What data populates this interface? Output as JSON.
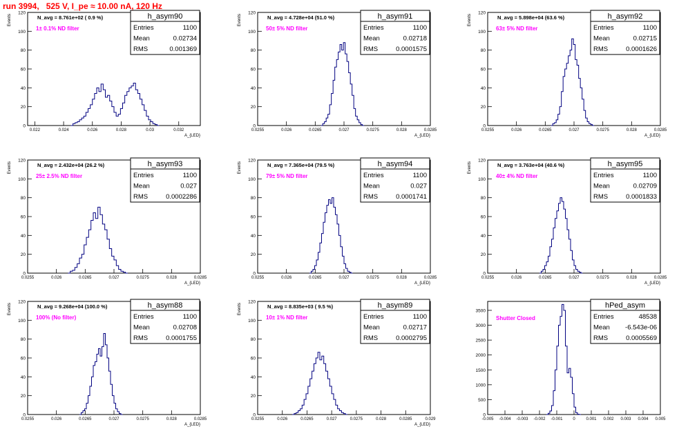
{
  "header": {
    "title": "run 3994,   525 V, I_pe ≈ 10.00 nA, 120 Hz"
  },
  "chart_data": [
    {
      "type": "bar",
      "name": "h_asym90",
      "navg": "N_avg = 8.761e+02 ( 0.9 %)",
      "filter": "1± 0.1% ND filter",
      "stats": {
        "entries": "1100",
        "mean": "0.02734",
        "rms": "0.001369"
      },
      "ylabel": "Events",
      "xlabel": "A_{LED}",
      "xlim": [
        0.0215,
        0.0335
      ],
      "ylim": [
        0,
        120
      ],
      "yticks": [
        0,
        20,
        40,
        60,
        80,
        100,
        120
      ],
      "xticks": [
        0.022,
        0.024,
        0.026,
        0.028,
        0.03,
        0.032
      ],
      "xticklabels": [
        "0.022",
        "0.024",
        "0.026",
        "0.028",
        "0.03",
        "0.032"
      ],
      "hist": {
        "start": 0.0245,
        "width": 0.00015,
        "values": [
          0,
          2,
          3,
          4,
          6,
          8,
          10,
          14,
          18,
          22,
          28,
          34,
          40,
          36,
          44,
          38,
          30,
          32,
          26,
          20,
          14,
          10,
          12,
          18,
          24,
          32,
          36,
          40,
          42,
          45,
          38,
          34,
          28,
          22,
          16,
          10,
          6,
          4,
          2,
          1,
          0
        ]
      }
    },
    {
      "type": "bar",
      "name": "h_asym91",
      "navg": "N_avg = 4.728e+04 (51.0 %)",
      "filter": "50± 5% ND filter",
      "stats": {
        "entries": "1100",
        "mean": "0.02718",
        "rms": "0.0001575"
      },
      "ylabel": "Events",
      "xlabel": "A_{LED}",
      "xlim": [
        0.0255,
        0.0285
      ],
      "ylim": [
        0,
        120
      ],
      "yticks": [
        0,
        20,
        40,
        60,
        80,
        100,
        120
      ],
      "xticks": [
        0.0255,
        0.026,
        0.0265,
        0.027,
        0.0275,
        0.028,
        0.0285
      ],
      "xticklabels": [
        "0.0255",
        "0.026",
        "0.0265",
        "0.027",
        "0.0275",
        "0.028",
        "0.0285"
      ],
      "hist": {
        "start": 0.0266,
        "width": 3e-05,
        "values": [
          0,
          2,
          4,
          8,
          12,
          22,
          34,
          48,
          62,
          70,
          78,
          86,
          80,
          88,
          76,
          68,
          56,
          44,
          32,
          18,
          10,
          6,
          3,
          1,
          0
        ]
      }
    },
    {
      "type": "bar",
      "name": "h_asym92",
      "navg": "N_avg = 5.898e+04 (63.6 %)",
      "filter": "63± 5% ND filter",
      "stats": {
        "entries": "1100",
        "mean": "0.02715",
        "rms": "0.0001626"
      },
      "ylabel": "Events",
      "xlabel": "A_{LED}",
      "xlim": [
        0.0255,
        0.0285
      ],
      "ylim": [
        0,
        120
      ],
      "yticks": [
        0,
        20,
        40,
        60,
        80,
        100,
        120
      ],
      "xticks": [
        0.0255,
        0.026,
        0.0265,
        0.027,
        0.0275,
        0.028,
        0.0285
      ],
      "xticklabels": [
        "0.0255",
        "0.026",
        "0.0265",
        "0.027",
        "0.0275",
        "0.028",
        "0.0285"
      ],
      "hist": {
        "start": 0.0266,
        "width": 3e-05,
        "values": [
          0,
          2,
          3,
          6,
          12,
          20,
          36,
          52,
          60,
          66,
          74,
          80,
          92,
          86,
          70,
          64,
          50,
          40,
          28,
          16,
          8,
          4,
          2,
          1,
          0
        ]
      }
    },
    {
      "type": "bar",
      "name": "h_asym93",
      "navg": "N_avg = 2.432e+04 (26.2 %)",
      "filter": "25± 2.5% ND filter",
      "stats": {
        "entries": "1100",
        "mean": "0.027",
        "rms": "0.0002286"
      },
      "ylabel": "Events",
      "xlabel": "A_{LED}",
      "xlim": [
        0.0255,
        0.0285
      ],
      "ylim": [
        0,
        120
      ],
      "yticks": [
        0,
        20,
        40,
        60,
        80,
        100,
        120
      ],
      "xticks": [
        0.0255,
        0.026,
        0.0265,
        0.027,
        0.0275,
        0.028,
        0.0285
      ],
      "xticklabels": [
        "0.0255",
        "0.026",
        "0.0265",
        "0.027",
        "0.0275",
        "0.028",
        "0.0285"
      ],
      "hist": {
        "start": 0.0262,
        "width": 4e-05,
        "values": [
          0,
          2,
          3,
          6,
          10,
          16,
          20,
          30,
          38,
          46,
          56,
          64,
          58,
          70,
          62,
          52,
          46,
          36,
          26,
          18,
          14,
          8,
          4,
          2,
          1,
          0
        ]
      }
    },
    {
      "type": "bar",
      "name": "h_asym94",
      "navg": "N_avg = 7.365e+04 (79.5 %)",
      "filter": "79± 5% ND filter",
      "stats": {
        "entries": "1100",
        "mean": "0.027",
        "rms": "0.0001741"
      },
      "ylabel": "Events",
      "xlabel": "A_{LED}",
      "xlim": [
        0.0255,
        0.0285
      ],
      "ylim": [
        0,
        120
      ],
      "yticks": [
        0,
        20,
        40,
        60,
        80,
        100,
        120
      ],
      "xticks": [
        0.0255,
        0.026,
        0.0265,
        0.027,
        0.0275,
        0.028,
        0.0285
      ],
      "xticklabels": [
        "0.0255",
        "0.026",
        "0.0265",
        "0.027",
        "0.0275",
        "0.028",
        "0.0285"
      ],
      "hist": {
        "start": 0.0264,
        "width": 3e-05,
        "values": [
          0,
          2,
          4,
          8,
          14,
          22,
          32,
          42,
          54,
          64,
          72,
          78,
          74,
          80,
          70,
          62,
          52,
          40,
          28,
          18,
          10,
          5,
          2,
          1,
          0
        ]
      }
    },
    {
      "type": "bar",
      "name": "h_asym95",
      "navg": "N_avg = 3.763e+04 (40.6 %)",
      "filter": "40± 4% ND filter",
      "stats": {
        "entries": "1100",
        "mean": "0.02709",
        "rms": "0.0001833"
      },
      "ylabel": "Events",
      "xlabel": "A_{LED}",
      "xlim": [
        0.0255,
        0.0285
      ],
      "ylim": [
        0,
        120
      ],
      "yticks": [
        0,
        20,
        40,
        60,
        80,
        100,
        120
      ],
      "xticks": [
        0.0255,
        0.026,
        0.0265,
        0.027,
        0.0275,
        0.028,
        0.0285
      ],
      "xticklabels": [
        "0.0255",
        "0.026",
        "0.0265",
        "0.027",
        "0.0275",
        "0.028",
        "0.0285"
      ],
      "hist": {
        "start": 0.0264,
        "width": 3e-05,
        "values": [
          0,
          2,
          4,
          8,
          12,
          18,
          28,
          36,
          48,
          58,
          66,
          74,
          80,
          76,
          68,
          58,
          46,
          36,
          24,
          14,
          8,
          4,
          2,
          1,
          0
        ]
      }
    },
    {
      "type": "bar",
      "name": "h_asym88",
      "navg": "N_avg = 9.268e+04 (100.0 %)",
      "filter": "100% (No filter)",
      "stats": {
        "entries": "1100",
        "mean": "0.02708",
        "rms": "0.0001755"
      },
      "ylabel": "Events",
      "xlabel": "A_{LED}",
      "xlim": [
        0.0255,
        0.0285
      ],
      "ylim": [
        0,
        120
      ],
      "yticks": [
        0,
        20,
        40,
        60,
        80,
        100,
        120
      ],
      "xticks": [
        0.0255,
        0.026,
        0.0265,
        0.027,
        0.0275,
        0.028,
        0.0285
      ],
      "xticklabels": [
        "0.0255",
        "0.026",
        "0.0265",
        "0.027",
        "0.0275",
        "0.028",
        "0.0285"
      ],
      "hist": {
        "start": 0.0264,
        "width": 3e-05,
        "values": [
          0,
          2,
          4,
          6,
          12,
          20,
          30,
          40,
          52,
          56,
          64,
          70,
          62,
          72,
          86,
          74,
          60,
          46,
          32,
          20,
          12,
          6,
          3,
          1,
          0
        ]
      }
    },
    {
      "type": "bar",
      "name": "h_asym89",
      "navg": "N_avg = 8.835e+03 ( 9.5 %)",
      "filter": "10± 1% ND filter",
      "stats": {
        "entries": "1100",
        "mean": "0.02717",
        "rms": "0.0002795"
      },
      "ylabel": "Events",
      "xlabel": "A_{LED}",
      "xlim": [
        0.0255,
        0.029
      ],
      "ylim": [
        0,
        120
      ],
      "yticks": [
        0,
        20,
        40,
        60,
        80,
        100,
        120
      ],
      "xticks": [
        0.0255,
        0.026,
        0.0265,
        0.027,
        0.0275,
        0.028,
        0.0285,
        0.029
      ],
      "xticklabels": [
        "0.0255",
        "0.026",
        "0.0265",
        "0.027",
        "0.0275",
        "0.028",
        "0.0285",
        "0.029"
      ],
      "hist": {
        "start": 0.0262,
        "width": 4e-05,
        "values": [
          0,
          1,
          2,
          4,
          6,
          10,
          16,
          22,
          30,
          38,
          46,
          54,
          60,
          66,
          58,
          62,
          54,
          46,
          38,
          30,
          22,
          16,
          10,
          6,
          4,
          2,
          1,
          0
        ]
      }
    },
    {
      "type": "bar",
      "name": "hPed_asym",
      "navg": "",
      "filter": "Shutter Closed",
      "stats": {
        "entries": "48538",
        "mean": "-6.543e-06",
        "rms": "0.0005569"
      },
      "ylabel": "",
      "xlabel": "",
      "xlim": [
        -0.005,
        0.005
      ],
      "ylim": [
        0,
        3800
      ],
      "yticks": [
        0,
        500,
        1000,
        1500,
        2000,
        2500,
        3000,
        3500
      ],
      "xticks": [
        -0.005,
        -0.004,
        -0.003,
        -0.002,
        -0.001,
        0,
        0.001,
        0.002,
        0.003,
        0.004,
        0.005
      ],
      "xticklabels": [
        "-0.005",
        "-0.004",
        "-0.003",
        "-0.002",
        "-0.001",
        "0",
        "0.001",
        "0.002",
        "0.003",
        "0.004",
        "0.005"
      ],
      "hist": {
        "start": -0.0016,
        "width": 0.0001,
        "values": [
          0,
          40,
          120,
          300,
          800,
          1500,
          2300,
          3000,
          3300,
          3700,
          3500,
          2300,
          1400,
          1550,
          1250,
          700,
          250,
          60,
          10,
          0
        ]
      }
    }
  ],
  "stats_labels": {
    "entries": "Entries",
    "mean": "Mean",
    "rms": "RMS"
  },
  "colors": {
    "hist": "#000080",
    "title": "#ff0000",
    "filter": "#ff00ff",
    "axis": "#000000"
  }
}
